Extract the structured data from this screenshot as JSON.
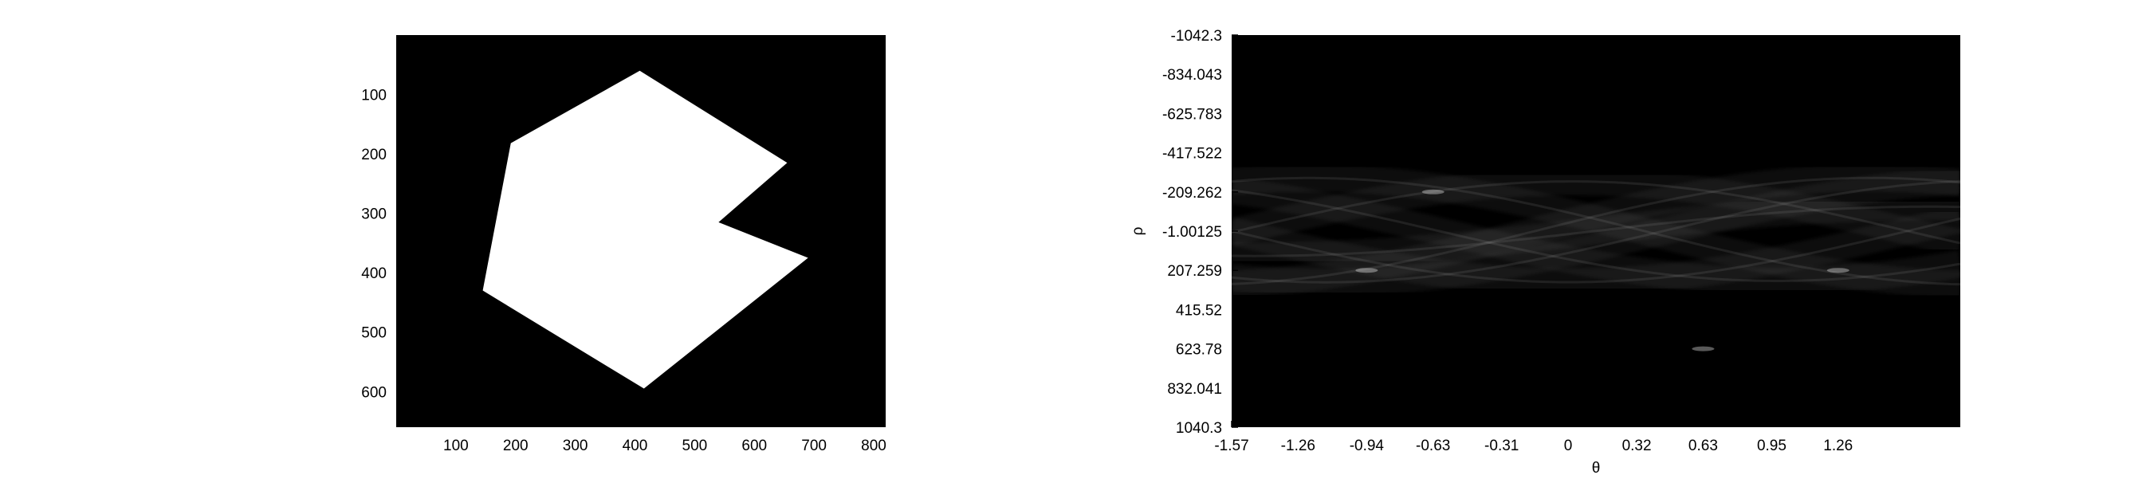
{
  "chart_data": [
    {
      "type": "heatmap",
      "title": "",
      "description_kind": "binary image",
      "xlabel": "",
      "ylabel": "",
      "xlim": [
        0,
        820
      ],
      "ylim": [
        660,
        0
      ],
      "xticks": [
        100,
        200,
        300,
        400,
        500,
        600,
        700,
        800
      ],
      "xtick_labels": [
        "100",
        "200",
        "300",
        "400",
        "500",
        "600",
        "700",
        "800"
      ],
      "yticks": [
        100,
        200,
        300,
        400,
        500,
        600
      ],
      "ytick_labels": [
        "100",
        "200",
        "300",
        "400",
        "500",
        "600"
      ],
      "background_color": "#000000",
      "shape_color": "#ffffff",
      "polygon_vertices": [
        [
          408,
          60
        ],
        [
          655,
          215
        ],
        [
          540,
          315
        ],
        [
          690,
          375
        ],
        [
          415,
          595
        ],
        [
          145,
          430
        ],
        [
          192,
          182
        ]
      ]
    },
    {
      "type": "heatmap",
      "title": "",
      "xlabel": "θ",
      "ylabel": "ρ",
      "xlim": [
        -1.57,
        1.83
      ],
      "ylim": [
        -1042.3,
        1040.3
      ],
      "xticks": [
        -1.57,
        -1.26,
        -0.94,
        -0.63,
        -0.31,
        0,
        0.32,
        0.63,
        0.95,
        1.26
      ],
      "xtick_labels": [
        "-1.57",
        "-1.26",
        "-0.94",
        "-0.63",
        "-0.31",
        "0",
        "0.32",
        "0.63",
        "0.95",
        "1.26"
      ],
      "yticks": [
        -1042.3,
        -834.043,
        -625.783,
        -417.522,
        -209.262,
        -1.00125,
        207.259,
        415.52,
        623.78,
        832.041,
        1040.3
      ],
      "ytick_labels": [
        "-1042.3",
        "-834.043",
        "-625.783",
        "-417.522",
        "-209.262",
        "-1.00125",
        "207.259",
        "415.52",
        "623.78",
        "832.041",
        "1040.3"
      ],
      "background_color": "#000000",
      "band_color": "#d8d8d8",
      "peaks": [
        {
          "theta": -0.63,
          "rho": -209.262
        },
        {
          "theta": -0.94,
          "rho": 207.259
        },
        {
          "theta": 0.63,
          "rho": 623.78
        },
        {
          "theta": 1.26,
          "rho": 207.259
        }
      ]
    }
  ]
}
